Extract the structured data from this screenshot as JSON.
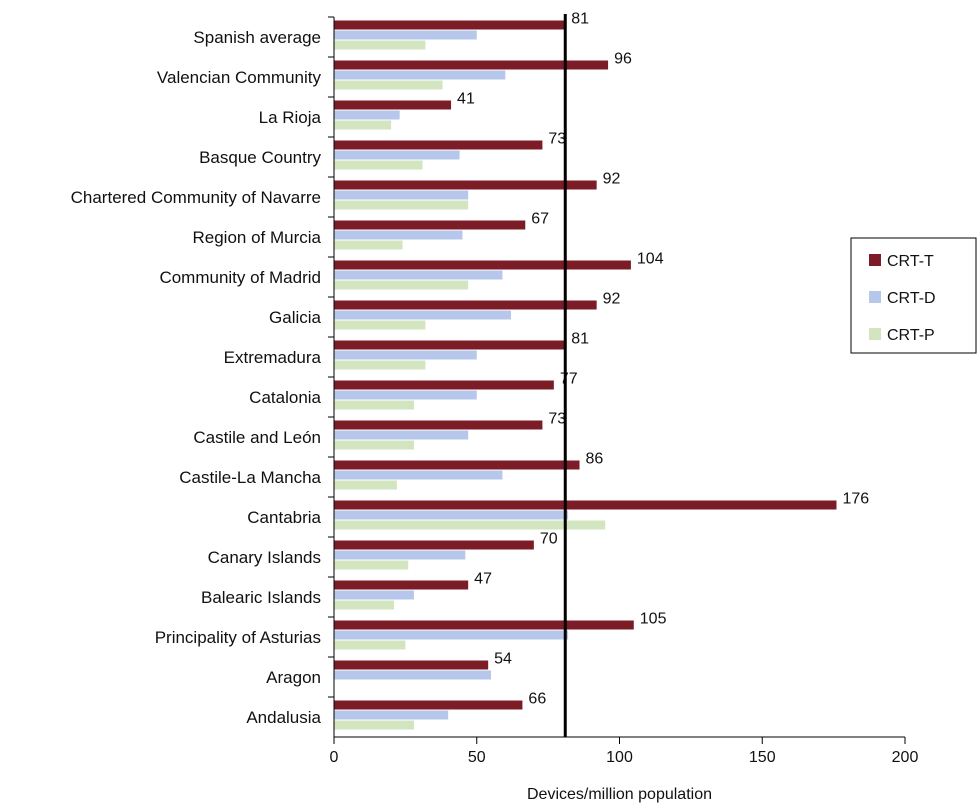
{
  "chart_data": {
    "type": "bar",
    "orientation": "horizontal",
    "categories": [
      "Spanish average",
      "Valencian Community",
      "La Rioja",
      "Basque Country",
      "Chartered Community of Navarre",
      "Region of Murcia",
      "Community of Madrid",
      "Galicia",
      "Extremadura",
      "Catalonia",
      "Castile and León",
      "Castile-La Mancha",
      "Cantabria",
      "Canary Islands",
      "Balearic Islands",
      "Principality of Asturias",
      "Aragon",
      "Andalusia"
    ],
    "series": [
      {
        "name": "CRT-T",
        "color": "#7b1c27",
        "values": [
          81,
          96,
          41,
          73,
          92,
          67,
          104,
          92,
          81,
          77,
          73,
          86,
          176,
          70,
          47,
          105,
          54,
          66
        ],
        "show_labels": true
      },
      {
        "name": "CRT-D",
        "color": "#b7c7ec",
        "values": [
          50,
          60,
          23,
          44,
          47,
          45,
          59,
          62,
          50,
          50,
          47,
          59,
          82,
          46,
          28,
          82,
          55,
          40
        ],
        "show_labels": false
      },
      {
        "name": "CRT-P",
        "color": "#d2e4c0",
        "values": [
          32,
          38,
          20,
          31,
          47,
          24,
          47,
          32,
          32,
          28,
          28,
          22,
          95,
          26,
          21,
          25,
          0,
          28
        ],
        "show_labels": false
      }
    ],
    "xlabel": "Devices/million population",
    "xlim": [
      0,
      200
    ],
    "xticks": [
      "0",
      "50",
      "100",
      "150",
      "200"
    ],
    "reference_line": 81,
    "legend_position": "right",
    "grid": false
  }
}
